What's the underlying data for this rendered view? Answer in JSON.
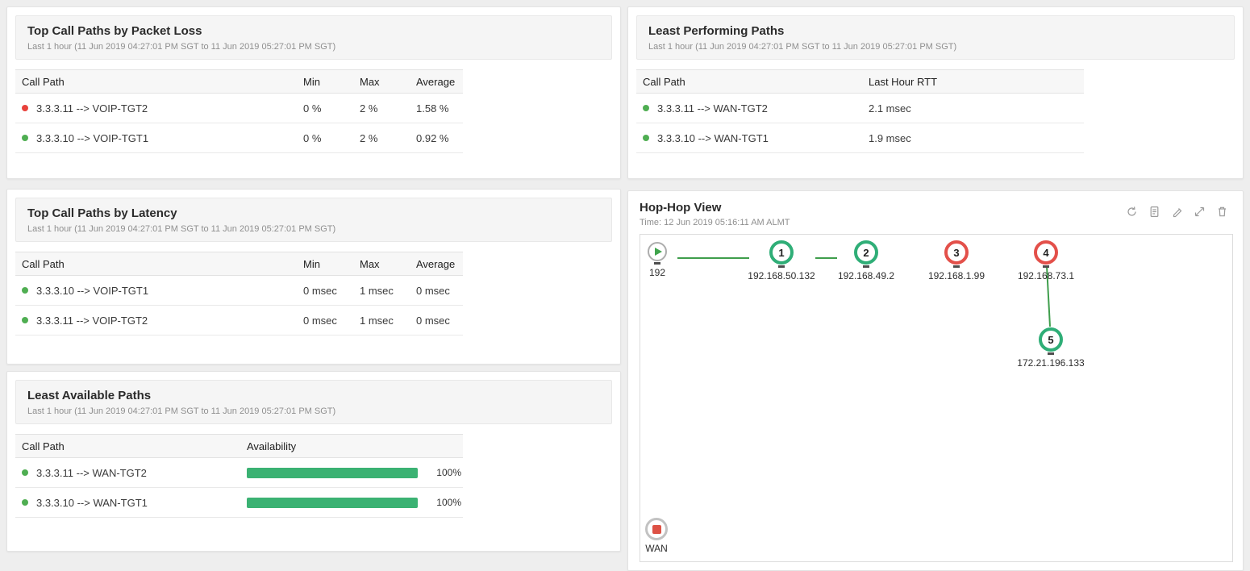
{
  "colors": {
    "green": "#4fae52",
    "red": "#e8423c",
    "bar_green": "#3bb273",
    "edge_green": "#3f9e4c"
  },
  "panels": {
    "packet_loss": {
      "title": "Top Call Paths by Packet Loss",
      "subtitle": "Last 1 hour (11 Jun 2019 04:27:01 PM SGT to 11 Jun 2019 05:27:01 PM SGT)",
      "col_path": "Call Path",
      "col_min": "Min",
      "col_max": "Max",
      "col_avg": "Average",
      "rows": [
        {
          "status": "red",
          "path": "3.3.3.11 --> VOIP-TGT2",
          "min": "0 %",
          "max": "2 %",
          "avg": "1.58 %"
        },
        {
          "status": "green",
          "path": "3.3.3.10 --> VOIP-TGT1",
          "min": "0 %",
          "max": "2 %",
          "avg": "0.92 %"
        }
      ]
    },
    "latency": {
      "title": "Top Call Paths by Latency",
      "subtitle": "Last 1 hour (11 Jun 2019 04:27:01 PM SGT to 11 Jun 2019 05:27:01 PM SGT)",
      "col_path": "Call Path",
      "col_min": "Min",
      "col_max": "Max",
      "col_avg": "Average",
      "rows": [
        {
          "status": "green",
          "path": "3.3.3.10 --> VOIP-TGT1",
          "min": "0 msec",
          "max": "1 msec",
          "avg": "0 msec"
        },
        {
          "status": "green",
          "path": "3.3.3.11 --> VOIP-TGT2",
          "min": "0 msec",
          "max": "1 msec",
          "avg": "0 msec"
        }
      ]
    },
    "availability": {
      "title": "Least Available Paths",
      "subtitle": "Last 1 hour (11 Jun 2019 04:27:01 PM SGT to 11 Jun 2019 05:27:01 PM SGT)",
      "col_path": "Call Path",
      "col_avail": "Availability",
      "rows": [
        {
          "status": "green",
          "path": "3.3.3.11 --> WAN-TGT2",
          "pct": 100,
          "label": "100%"
        },
        {
          "status": "green",
          "path": "3.3.3.10 --> WAN-TGT1",
          "pct": 100,
          "label": "100%"
        }
      ]
    },
    "performing": {
      "title": "Least Performing Paths",
      "subtitle": "Last 1 hour (11 Jun 2019 04:27:01 PM SGT to 11 Jun 2019 05:27:01 PM SGT)",
      "col_path": "Call Path",
      "col_rtt": "Last Hour RTT",
      "rows": [
        {
          "status": "green",
          "path": "3.3.3.11 --> WAN-TGT2",
          "rtt": "2.1 msec"
        },
        {
          "status": "green",
          "path": "3.3.3.10 --> WAN-TGT1",
          "rtt": "1.9 msec"
        }
      ]
    },
    "hop_view": {
      "title": "Hop-Hop View",
      "subtitle": "Time: 12 Jun 2019 05:16:11 AM ALMT",
      "toolbar_icons": [
        "refresh",
        "report",
        "edit",
        "resize",
        "delete"
      ],
      "source": {
        "label": "192"
      },
      "endpoint": {
        "label": "WAN"
      },
      "hops": [
        {
          "num": "1",
          "ip": "192.168.50.132",
          "color": "green"
        },
        {
          "num": "2",
          "ip": "192.168.49.2",
          "color": "green"
        },
        {
          "num": "3",
          "ip": "192.168.1.99",
          "color": "red"
        },
        {
          "num": "4",
          "ip": "192.168.73.1",
          "color": "red"
        },
        {
          "num": "5",
          "ip": "172.21.196.133",
          "color": "green"
        }
      ]
    }
  }
}
